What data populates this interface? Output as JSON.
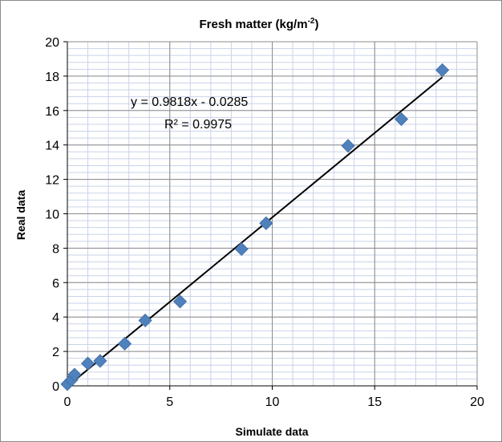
{
  "chart_data": {
    "type": "scatter",
    "title": "Fresh matter (kg/m",
    "title_superscript": "-2",
    "title_suffix": ")",
    "xlabel": "Simulate data",
    "ylabel": "Real data",
    "xlim": [
      0,
      20
    ],
    "ylim": [
      0,
      20
    ],
    "x_ticks": [
      0,
      5,
      10,
      15,
      20
    ],
    "y_ticks": [
      0,
      2,
      4,
      6,
      8,
      10,
      12,
      14,
      16,
      18,
      20
    ],
    "grid": true,
    "legend": "none",
    "series": [
      {
        "points": [
          {
            "x": 0.0,
            "y": 0.1
          },
          {
            "x": 0.2,
            "y": 0.35
          },
          {
            "x": 0.35,
            "y": 0.65
          },
          {
            "x": 1.0,
            "y": 1.3
          },
          {
            "x": 1.6,
            "y": 1.45
          },
          {
            "x": 2.8,
            "y": 2.45
          },
          {
            "x": 3.8,
            "y": 3.8
          },
          {
            "x": 5.5,
            "y": 4.9
          },
          {
            "x": 8.5,
            "y": 7.95
          },
          {
            "x": 9.7,
            "y": 9.45
          },
          {
            "x": 13.7,
            "y": 13.95
          },
          {
            "x": 16.3,
            "y": 15.5
          },
          {
            "x": 18.3,
            "y": 18.35
          }
        ]
      }
    ],
    "trendline": {
      "slope": 0.9818,
      "intercept": -0.0285,
      "x_range": [
        0,
        18.3
      ],
      "equation_label": "y = 0.9818x - 0.0285",
      "r2_label": "R² = 0.9975"
    },
    "colors": {
      "marker": "#4f81bd",
      "trendline": "#000000",
      "grid": "#8c8c8c",
      "minor_grid": "#c9d3e8"
    }
  }
}
